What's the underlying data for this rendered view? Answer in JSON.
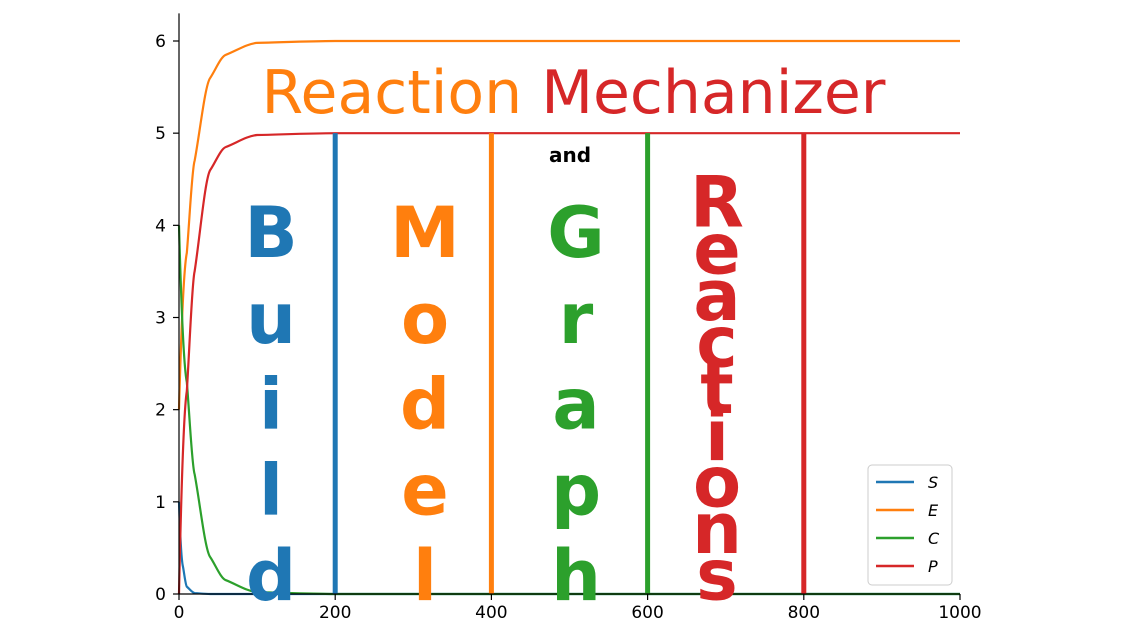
{
  "chart_data": {
    "type": "line",
    "xlim": [
      0,
      1000
    ],
    "ylim": [
      0,
      6.3
    ],
    "x_ticks": [
      0,
      200,
      400,
      600,
      800,
      1000
    ],
    "y_ticks": [
      0,
      1,
      2,
      3,
      4,
      5,
      6
    ],
    "x_tick_labels": [
      "0",
      "200",
      "400",
      "600",
      "800",
      "1000"
    ],
    "y_tick_labels": [
      "0",
      "1",
      "2",
      "3",
      "4",
      "5",
      "6"
    ],
    "grid": false,
    "legend_position": "bottom-right",
    "series": [
      {
        "name": "S",
        "color": "#1f77b4",
        "x": [
          0,
          5,
          10,
          20,
          40,
          100,
          1000
        ],
        "values": [
          1,
          0.3,
          0.08,
          0.01,
          0,
          0,
          0
        ]
      },
      {
        "name": "E",
        "color": "#ff7f0e",
        "x": [
          0,
          10,
          20,
          40,
          60,
          100,
          200,
          1000
        ],
        "values": [
          2,
          3.7,
          4.7,
          5.6,
          5.85,
          5.98,
          6,
          6
        ]
      },
      {
        "name": "C",
        "color": "#2ca02c",
        "x": [
          0,
          10,
          20,
          40,
          60,
          100,
          200,
          1000
        ],
        "values": [
          4,
          2.3,
          1.3,
          0.4,
          0.15,
          0.02,
          0,
          0
        ]
      },
      {
        "name": "P",
        "color": "#d62728",
        "x": [
          0,
          10,
          20,
          40,
          60,
          100,
          200,
          1000
        ],
        "values": [
          0,
          2.2,
          3.5,
          4.6,
          4.85,
          4.98,
          5,
          5
        ]
      }
    ],
    "vertical_lines": [
      {
        "x": 200,
        "color": "#1f77b4"
      },
      {
        "x": 400,
        "color": "#ff7f0e"
      },
      {
        "x": 600,
        "color": "#2ca02c"
      },
      {
        "x": 800,
        "color": "#d62728"
      }
    ]
  },
  "title": {
    "part1": "Reaction",
    "part2": "Mechanizer",
    "color1": "#ff7f0e",
    "color2": "#d62728"
  },
  "and_word": "and",
  "words": [
    {
      "letters": [
        "B",
        "u",
        "i",
        "l",
        "d"
      ],
      "color": "#1f77b4"
    },
    {
      "letters": [
        "M",
        "o",
        "d",
        "e",
        "l"
      ],
      "color": "#ff7f0e"
    },
    {
      "letters": [
        "G",
        "r",
        "a",
        "p",
        "h"
      ],
      "color": "#2ca02c"
    },
    {
      "letters": [
        "R",
        "e",
        "a",
        "c",
        "t",
        "i",
        "o",
        "n",
        "s"
      ],
      "color": "#d62728"
    }
  ]
}
